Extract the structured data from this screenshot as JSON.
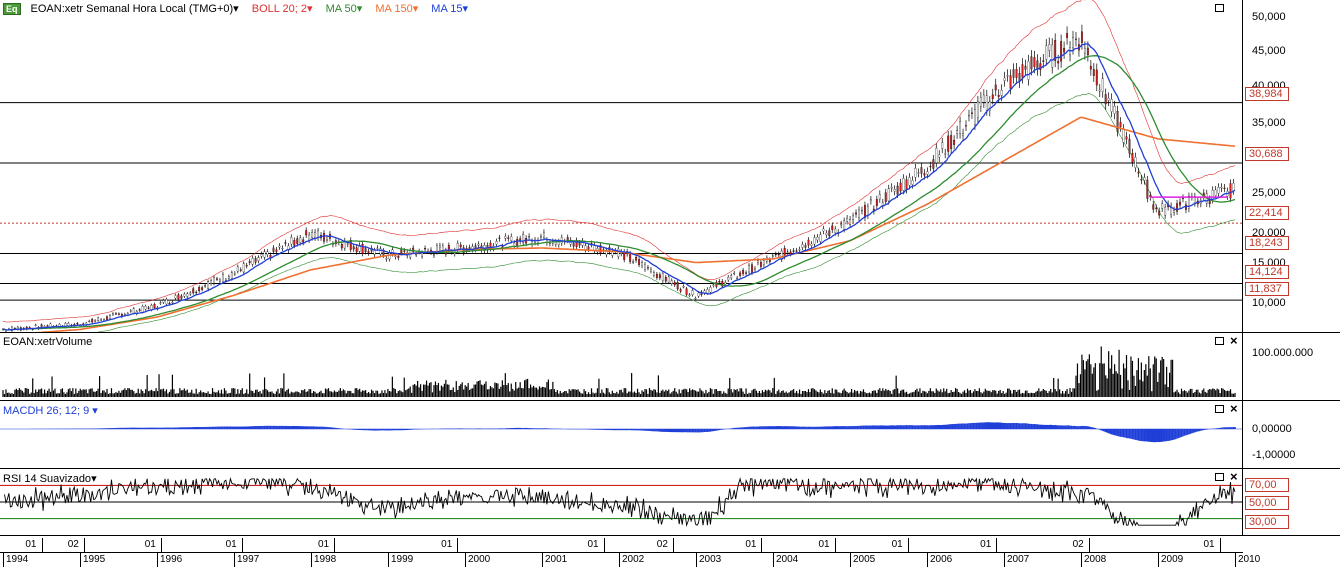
{
  "main_panel": {
    "symbol": "EOAN:xetr Semanal Hora Local (TMG+0)",
    "icon": "eq-badge",
    "badge_text": "Eq",
    "indicators": [
      {
        "label": "BOLL 20; 2",
        "color": "#e03030"
      },
      {
        "label": "MA 50",
        "color": "#2e8b2e"
      },
      {
        "label": "MA 150",
        "color": "#f07030"
      },
      {
        "label": "MA 15",
        "color": "#1f3fd8"
      }
    ],
    "dropdown_arrow": "▾",
    "y_ticks": [
      "50,000",
      "45,000",
      "40,000",
      "35,000",
      "25,000",
      "20,000",
      "15,000",
      "10,000"
    ],
    "levels": [
      "38,984",
      "30,688",
      "22,414",
      "18,243",
      "14,124",
      "11,837"
    ]
  },
  "volume_panel": {
    "label": "EOAN:xetrVolume",
    "tick": "100.000.000"
  },
  "macd_panel": {
    "label": "MACDH 26; 12; 9",
    "ticks": [
      "0,00000",
      "-1,00000"
    ]
  },
  "rsi_panel": {
    "label": "RSI 14 Suavizado",
    "levels": [
      "70,00",
      "50,00",
      "30,00"
    ]
  },
  "time_axis": {
    "month_labels": [
      "01",
      "02",
      "01",
      "01",
      "01",
      "01",
      "01",
      "02",
      "01",
      "01",
      "01",
      "01",
      "02",
      "01"
    ],
    "years": [
      "1994",
      "1995",
      "1996",
      "1997",
      "1998",
      "1999",
      "2000",
      "2001",
      "2002",
      "2003",
      "2004",
      "2005",
      "2006",
      "2007",
      "2008",
      "2009",
      "2010"
    ]
  },
  "chart_data": {
    "type": "line",
    "title": "EOAN:xetr Semanal Hora Local (TMG+0)",
    "x": [
      "1994",
      "1995",
      "1996",
      "1997",
      "1998",
      "1999",
      "2000",
      "2001",
      "2002",
      "2003",
      "2004",
      "2005",
      "2006",
      "2007",
      "2008",
      "2009",
      "2010"
    ],
    "series": [
      {
        "name": "EOAN:xetr",
        "values": [
          7.8,
          8.5,
          11.0,
          15.5,
          21.0,
          18.0,
          19.0,
          20.5,
          18.5,
          12.5,
          17.5,
          22.5,
          30.0,
          41.5,
          48.0,
          24.0,
          27.0
        ]
      },
      {
        "name": "MA 150",
        "values": [
          7.0,
          7.8,
          9.5,
          12.5,
          16.0,
          18.0,
          18.8,
          19.0,
          18.5,
          17.0,
          17.5,
          20.0,
          25.0,
          31.0,
          37.0,
          34.0,
          33.0
        ]
      }
    ],
    "ylim": [
      8,
      52
    ],
    "horizontal_levels": [
      38.984,
      30.688,
      22.414,
      18.243,
      14.124,
      11.837
    ],
    "macd_range": [
      -1.2,
      0.6
    ],
    "rsi_levels": [
      70,
      50,
      30
    ]
  }
}
